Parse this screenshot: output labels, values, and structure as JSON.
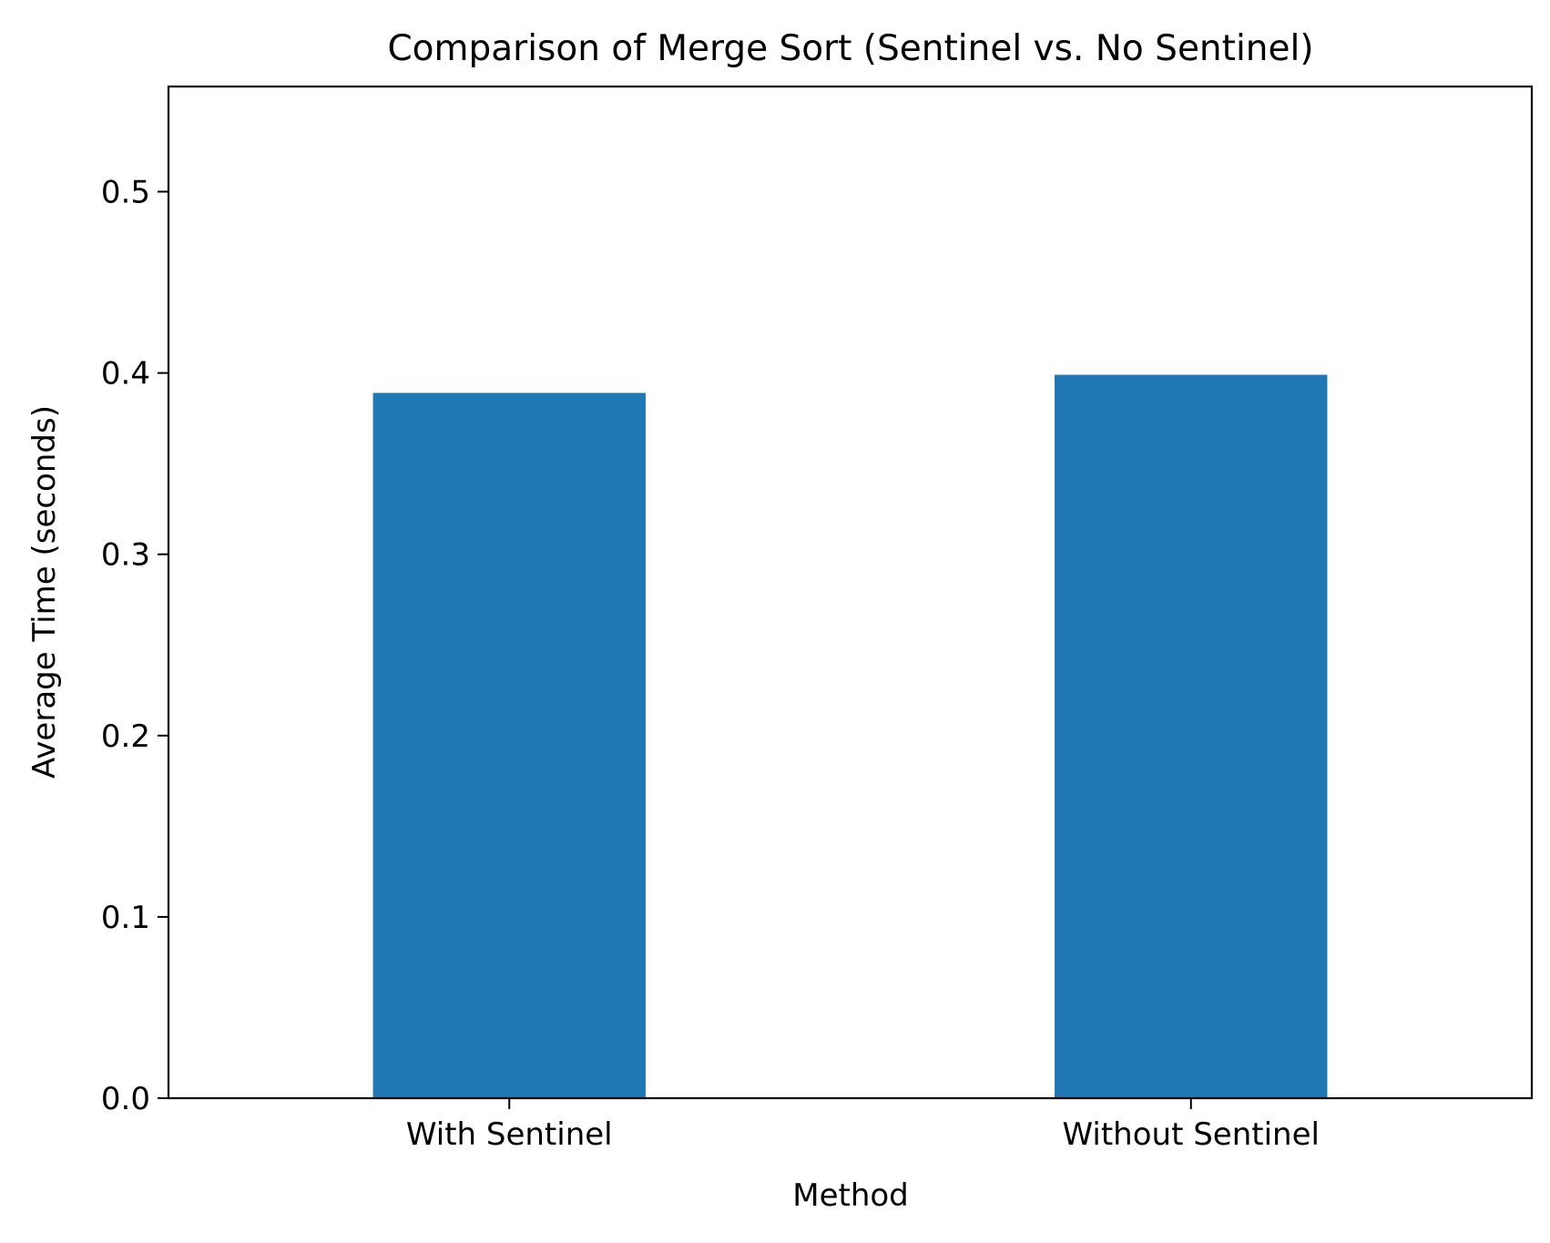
{
  "chart_data": {
    "type": "bar",
    "title": "Comparison of Merge Sort (Sentinel vs. No Sentinel)",
    "xlabel": "Method",
    "ylabel": "Average Time (seconds)",
    "categories": [
      "With Sentinel",
      "Without Sentinel"
    ],
    "values": [
      0.389,
      0.399
    ],
    "ylim": [
      0,
      0.558
    ],
    "yticks": [
      0.0,
      0.1,
      0.2,
      0.3,
      0.4,
      0.5
    ],
    "ytick_labels": [
      "0.0",
      "0.1",
      "0.2",
      "0.3",
      "0.4",
      "0.5"
    ],
    "bar_color": "#1f77b4",
    "grid": false,
    "legend": "none"
  }
}
